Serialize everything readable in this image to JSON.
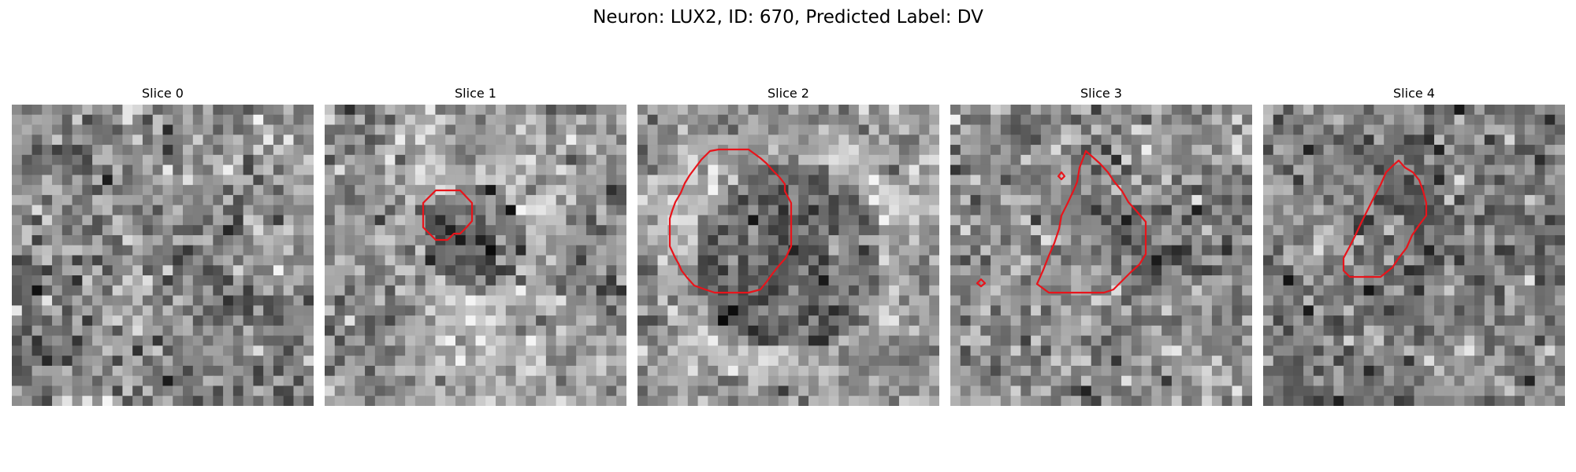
{
  "figure": {
    "title": "Neuron: LUX2, ID: 670, Predicted Label: DV",
    "contour_color": "#e8141b",
    "colormap": "gray",
    "grid_size": 30,
    "panels": [
      {
        "title": "Slice 0"
      },
      {
        "title": "Slice 1"
      },
      {
        "title": "Slice 2"
      },
      {
        "title": "Slice 3"
      },
      {
        "title": "Slice 4"
      }
    ]
  }
}
